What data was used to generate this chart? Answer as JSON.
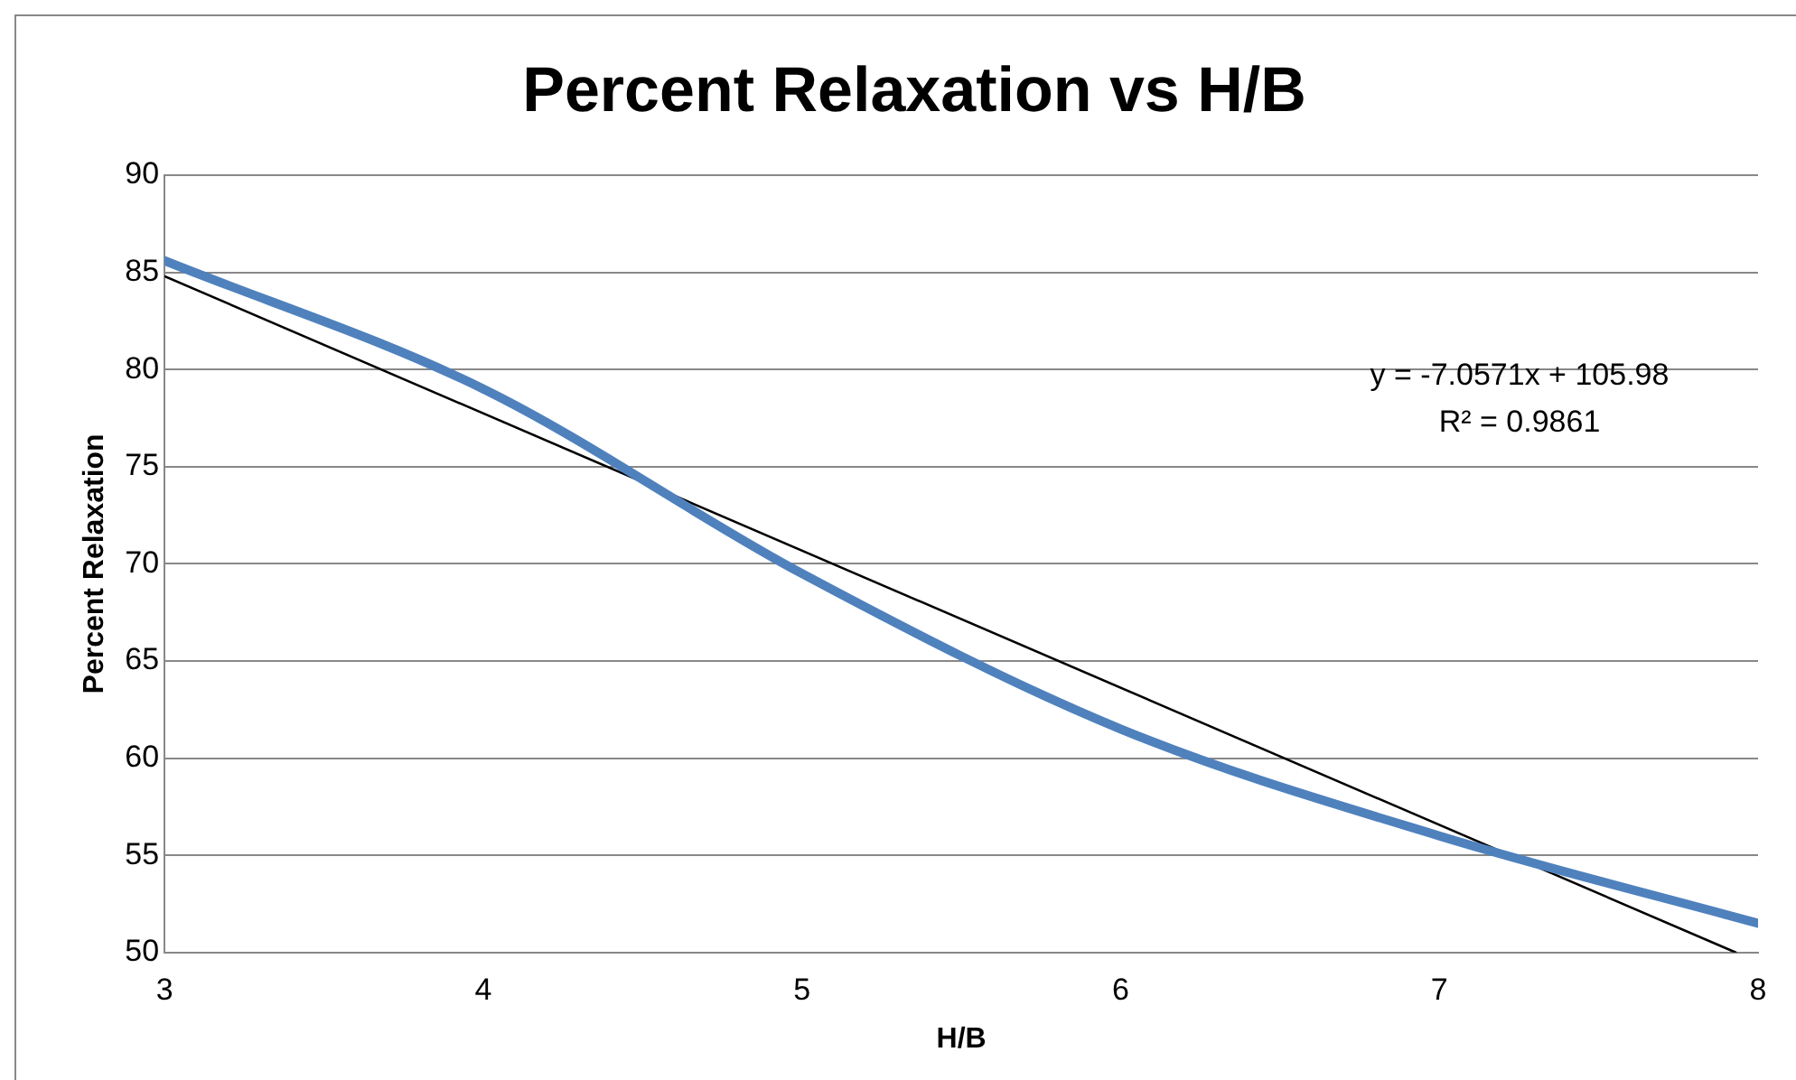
{
  "chart_data": {
    "type": "line",
    "title": "Percent Relaxation vs H/B",
    "xlabel": "H/B",
    "ylabel": "Percent Relaxation",
    "x": [
      3,
      4,
      5,
      6,
      7,
      8
    ],
    "series": [
      {
        "color": "#4f81bd",
        "values": [
          85.6,
          79,
          69.5,
          61.5,
          56,
          51.5
        ]
      },
      {
        "type": "line",
        "color": "#000000",
        "x": [
          3,
          7.93
        ],
        "values": [
          84.8,
          50.0
        ]
      }
    ],
    "xlim": [
      3,
      8
    ],
    "xticks": [
      3,
      4,
      5,
      6,
      7,
      8
    ],
    "ylim": [
      50,
      90
    ],
    "yticks": [
      50,
      55,
      60,
      65,
      70,
      75,
      80,
      85,
      90
    ],
    "annotations": [
      "y = -7.0571x + 105.98",
      "R² = 0.9861"
    ],
    "grid": "y",
    "legend": false,
    "marker": "none",
    "line_style": "solid"
  }
}
